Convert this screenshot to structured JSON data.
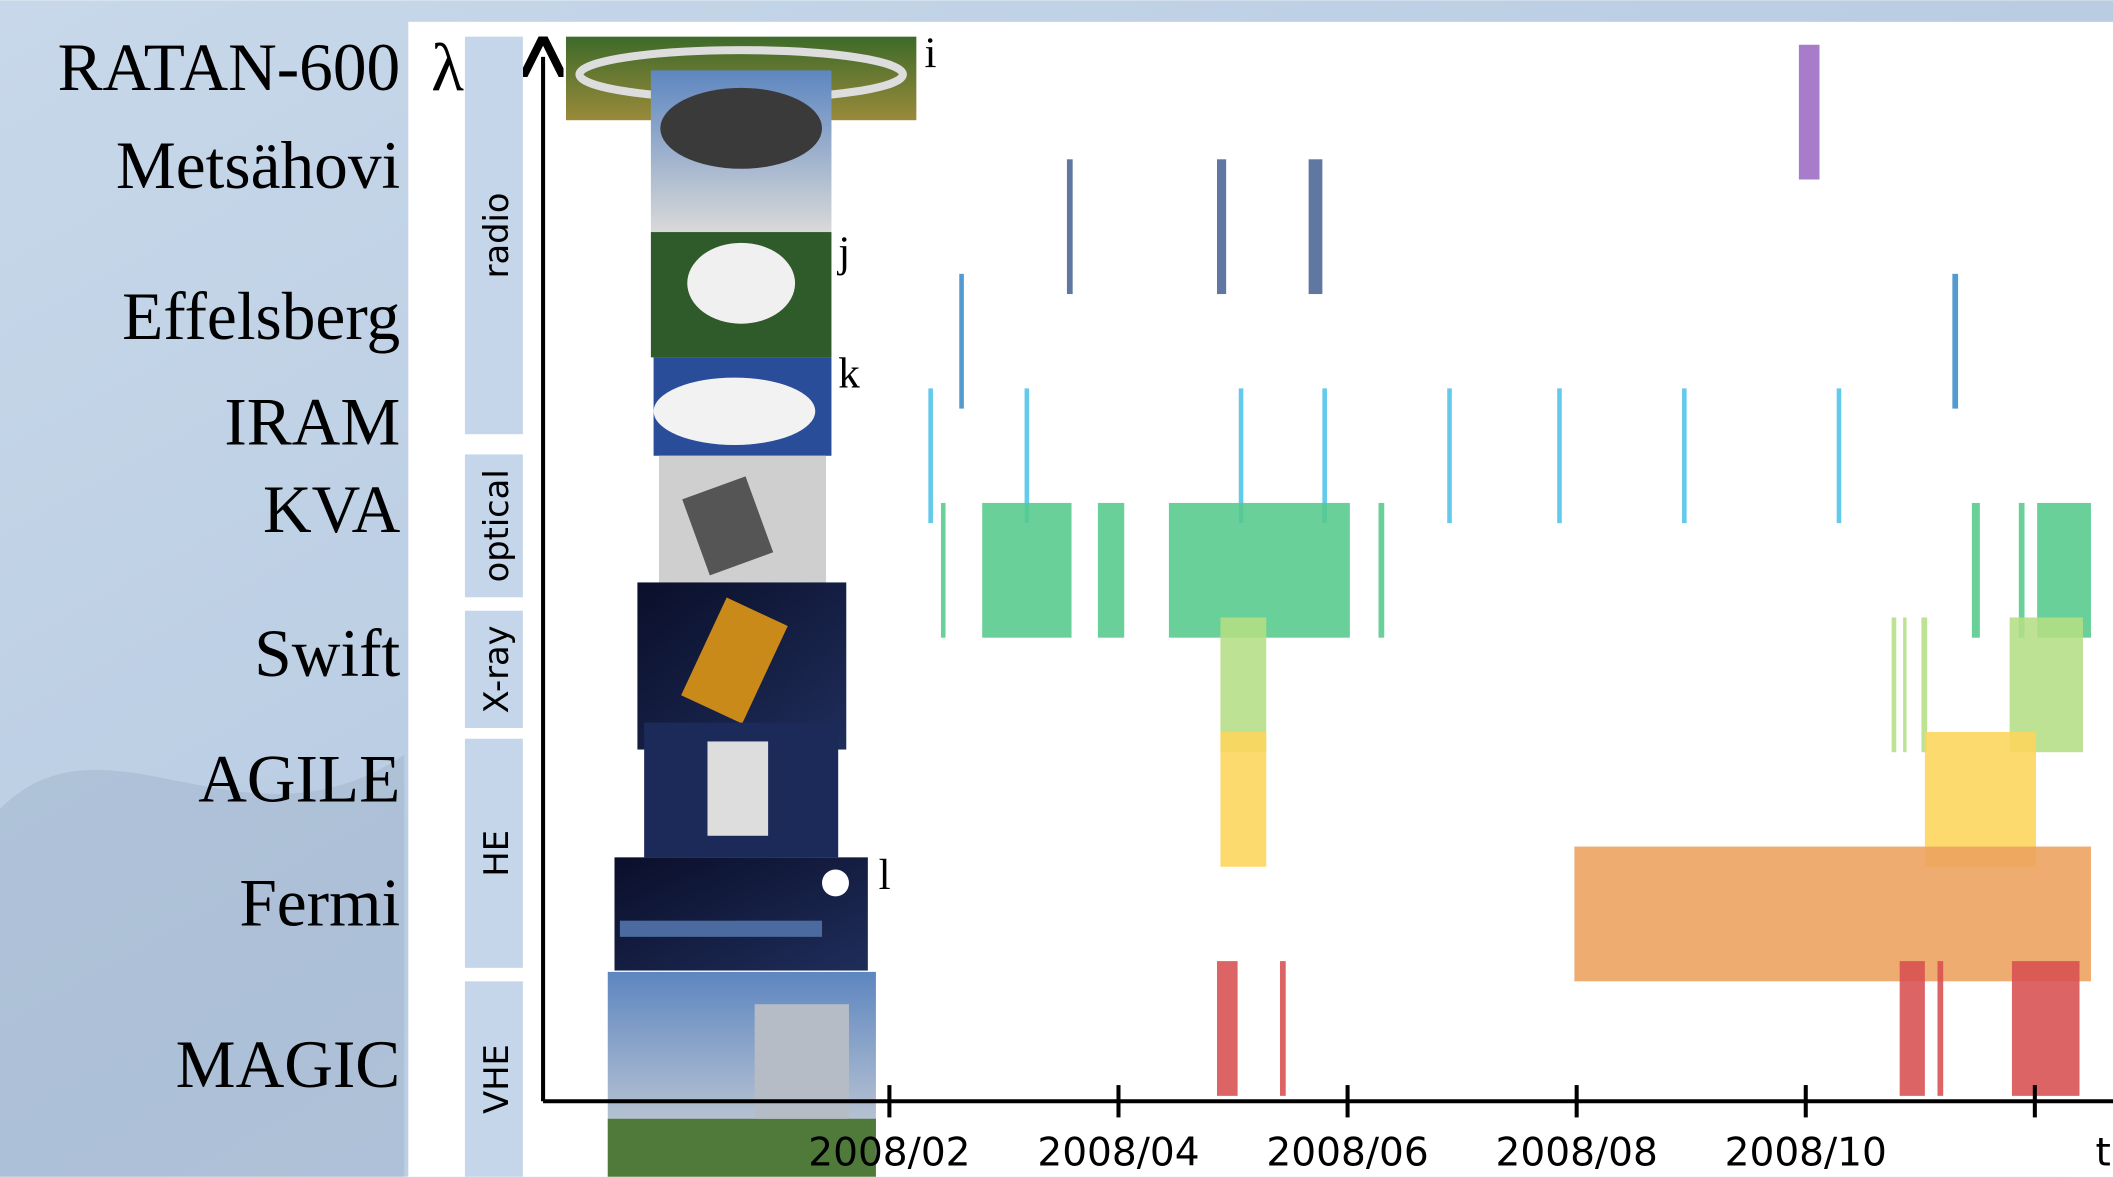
{
  "chart_data": {
    "type": "timeline",
    "y_label": "λ",
    "x_label": "t",
    "xlim": [
      -1,
      12.7
    ],
    "xticks": [
      {
        "value": 2,
        "label": "2008/02"
      },
      {
        "value": 4,
        "label": "2008/04"
      },
      {
        "value": 6,
        "label": "2008/06"
      },
      {
        "value": 8,
        "label": "2008/08"
      },
      {
        "value": 10,
        "label": "2008/10"
      },
      {
        "value": 12,
        "label": null
      }
    ],
    "bands": [
      "radio",
      "optical",
      "X-ray",
      "HE",
      "VHE"
    ],
    "photo_labels": [
      "i",
      "j",
      "k",
      "l"
    ],
    "rows": [
      {
        "name": "RATAN-600",
        "color": "#9b6bc4",
        "intervals": [
          [
            9.94,
            10.12
          ]
        ]
      },
      {
        "name": "Metsähovi",
        "color": "#4a6494",
        "intervals": [
          [
            3.55,
            3.6
          ],
          [
            4.86,
            4.94
          ],
          [
            5.66,
            5.78
          ]
        ]
      },
      {
        "name": "Effelsberg",
        "color": "#3a8cc8",
        "intervals": [
          [
            2.61,
            2.65
          ],
          [
            11.28,
            11.33
          ]
        ]
      },
      {
        "name": "IRAM",
        "color": "#4dc3e8",
        "intervals": [
          [
            2.34,
            2.38
          ],
          [
            3.18,
            3.22
          ],
          [
            5.05,
            5.09
          ],
          [
            5.78,
            5.82
          ],
          [
            6.87,
            6.91
          ],
          [
            7.83,
            7.87
          ],
          [
            8.92,
            8.96
          ],
          [
            10.27,
            10.31
          ]
        ]
      },
      {
        "name": "KVA",
        "color": "#55c98b",
        "intervals": [
          [
            2.45,
            2.49
          ],
          [
            2.81,
            3.59
          ],
          [
            3.82,
            4.05
          ],
          [
            4.44,
            6.02
          ],
          [
            6.27,
            6.32
          ],
          [
            11.45,
            11.52
          ],
          [
            11.86,
            11.91
          ],
          [
            12.02,
            12.49
          ]
        ]
      },
      {
        "name": "Swift",
        "color": "#b4de84",
        "intervals": [
          [
            4.89,
            5.29
          ],
          [
            10.75,
            10.79
          ],
          [
            10.85,
            10.88
          ],
          [
            11.01,
            11.06
          ],
          [
            11.78,
            12.42
          ]
        ]
      },
      {
        "name": "AGILE",
        "color": "#fdd55a",
        "intervals": [
          [
            4.89,
            5.29
          ],
          [
            11.04,
            12.01
          ]
        ]
      },
      {
        "name": "Fermi",
        "color": "#eda05d",
        "intervals": [
          [
            7.98,
            12.49
          ]
        ]
      },
      {
        "name": "MAGIC",
        "color": "#d84e4e",
        "intervals": [
          [
            4.86,
            5.04
          ],
          [
            5.41,
            5.46
          ],
          [
            10.82,
            11.04
          ],
          [
            11.15,
            11.2
          ],
          [
            11.8,
            12.39
          ]
        ]
      }
    ]
  }
}
